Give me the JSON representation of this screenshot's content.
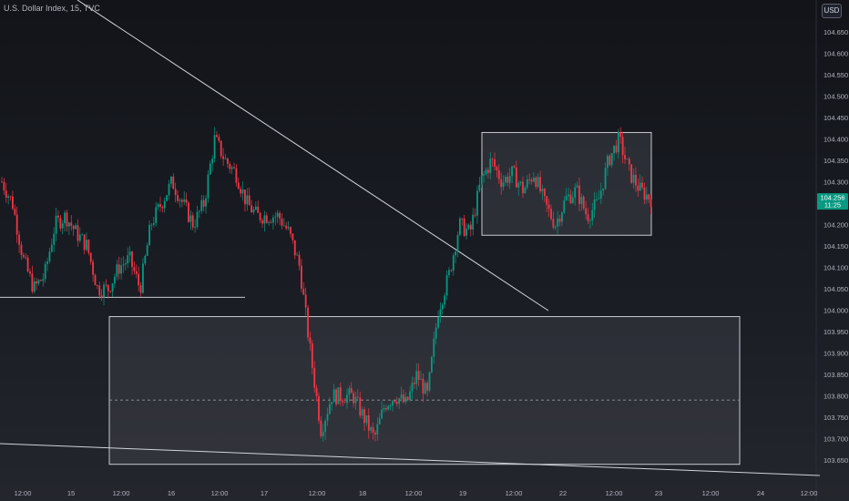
{
  "chart_data": {
    "type": "candlestick",
    "symbol": "U.S. Dollar Index, 15, TVC",
    "currency": "USD",
    "last_price": "104.256",
    "countdown": "11:25",
    "y_ticks": [
      "104.650",
      "104.600",
      "104.550",
      "104.500",
      "104.450",
      "104.400",
      "104.350",
      "104.300",
      "104.250",
      "104.200",
      "104.150",
      "104.100",
      "104.050",
      "104.000",
      "103.950",
      "103.900",
      "103.850",
      "103.800",
      "103.750",
      "103.700",
      "103.650"
    ],
    "x_ticks": [
      "12:00",
      "15",
      "12:00",
      "16",
      "12:00",
      "17",
      "12:00",
      "18",
      "12:00",
      "19",
      "12:00",
      "22",
      "12:00",
      "23",
      "12:00",
      "24",
      "12:00"
    ],
    "ylim": [
      103.625,
      104.675
    ],
    "colors": {
      "up": "#089981",
      "down": "#f23645",
      "lines": "#d1d4dc",
      "price_tag": "#089981"
    },
    "price_path": [
      [
        104.4,
        104.3
      ],
      [
        104.45,
        104.25
      ],
      [
        104.2,
        104.12
      ],
      [
        104.1,
        104.05
      ],
      [
        104.12,
        104.08
      ],
      [
        104.25,
        104.2
      ],
      [
        104.28,
        104.22
      ],
      [
        104.2,
        104.18
      ],
      [
        104.22,
        104.15
      ],
      [
        104.12,
        104.05
      ],
      [
        104.1,
        104.05
      ],
      [
        104.18,
        104.1
      ],
      [
        104.2,
        104.12
      ],
      [
        104.12,
        104.05
      ],
      [
        104.28,
        104.2
      ],
      [
        104.32,
        104.25
      ],
      [
        104.38,
        104.3
      ],
      [
        104.3,
        104.25
      ],
      [
        104.22,
        104.2
      ],
      [
        104.3,
        104.25
      ],
      [
        104.45,
        104.4
      ],
      [
        104.5,
        104.35
      ],
      [
        104.4,
        104.32
      ],
      [
        104.3,
        104.25
      ],
      [
        104.25,
        104.22
      ],
      [
        104.28,
        104.22
      ],
      [
        104.25,
        104.22
      ],
      [
        104.22,
        104.18
      ],
      [
        104.15,
        104.1
      ],
      [
        103.95,
        103.9
      ],
      [
        103.75,
        103.72
      ],
      [
        103.7,
        103.8
      ],
      [
        103.75,
        103.8
      ],
      [
        103.85,
        103.8
      ],
      [
        103.78,
        103.75
      ],
      [
        103.75,
        103.7
      ],
      [
        103.8,
        103.78
      ],
      [
        103.85,
        103.8
      ],
      [
        103.8,
        103.78
      ],
      [
        103.85,
        103.85
      ],
      [
        103.82,
        103.8
      ],
      [
        103.95,
        104.0
      ],
      [
        104.05,
        104.08
      ],
      [
        104.15,
        104.2
      ],
      [
        104.22,
        104.18
      ],
      [
        104.25,
        104.3
      ],
      [
        104.3,
        104.35
      ],
      [
        104.32,
        104.3
      ],
      [
        104.33,
        104.32
      ],
      [
        104.3,
        104.28
      ],
      [
        104.35,
        104.32
      ],
      [
        104.3,
        104.25
      ],
      [
        104.22,
        104.2
      ],
      [
        104.28,
        104.26
      ],
      [
        104.3,
        104.28
      ],
      [
        104.25,
        104.22
      ],
      [
        104.2,
        104.25
      ],
      [
        104.33,
        104.35
      ],
      [
        104.38,
        104.4
      ],
      [
        104.35,
        104.32
      ],
      [
        104.3,
        104.28
      ],
      [
        104.28,
        104.26
      ]
    ],
    "drawings": {
      "trendline_upper": {
        "from_price": 104.7,
        "to_price": 104.0
      },
      "trendline_lower": {
        "from_price": 103.715,
        "to_price": 103.63
      },
      "support_line": {
        "price": 104.03
      },
      "range_box_upper": {
        "top": 104.415,
        "bottom": 104.175
      },
      "range_box_lower": {
        "top": 103.985,
        "bottom": 103.64,
        "mid": 103.79
      }
    }
  }
}
